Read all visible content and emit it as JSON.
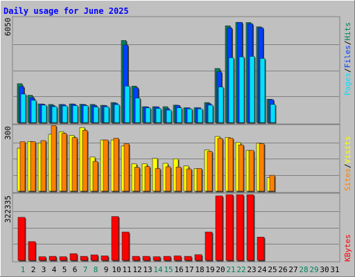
{
  "title": "Daily usage for June 2025",
  "colors": {
    "frame_bg": "#c0c0c0",
    "plot_bg": "#c0c0c0",
    "title": "#0000ff",
    "hits": "#00805c",
    "files": "#0040ff",
    "pages": "#00e0ff",
    "visits": "#ffff00",
    "sites": "#ff8000",
    "kbytes": "#ff0000",
    "weekend_label": "#00805c",
    "weekday_label": "#000000"
  },
  "legend": {
    "top": [
      {
        "text": "Pages",
        "color": "#00e0ff"
      },
      {
        "text": "/",
        "color": "#000000"
      },
      {
        "text": "Files",
        "color": "#0040ff"
      },
      {
        "text": "/",
        "color": "#000000"
      },
      {
        "text": "Hits",
        "color": "#00805c"
      }
    ],
    "middle": [
      {
        "text": "Sites",
        "color": "#ff8000"
      },
      {
        "text": "/",
        "color": "#000000"
      },
      {
        "text": "Visits",
        "color": "#ffff00"
      }
    ],
    "bottom": [
      {
        "text": "KBytes",
        "color": "#ff0000"
      }
    ]
  },
  "chart_data": [
    {
      "type": "bar",
      "panel": "hits-files-pages",
      "ymax_label": "6050",
      "ylim": [
        0,
        6050
      ],
      "categories": [
        "1",
        "2",
        "3",
        "4",
        "5",
        "6",
        "7",
        "8",
        "9",
        "10",
        "11",
        "12",
        "13",
        "14",
        "15",
        "16",
        "17",
        "18",
        "19",
        "20",
        "21",
        "22",
        "23",
        "24",
        "25",
        "26",
        "27",
        "28",
        "29",
        "30",
        "31"
      ],
      "series": [
        {
          "name": "Hits",
          "color": "#00805c",
          "values": [
            2250,
            1580,
            1080,
            1050,
            1050,
            1080,
            1060,
            1050,
            1000,
            1160,
            4750,
            2110,
            920,
            920,
            920,
            1010,
            860,
            860,
            1160,
            3130,
            5600,
            5800,
            5790,
            5540,
            1350,
            0,
            0,
            0,
            0,
            0,
            0
          ]
        },
        {
          "name": "Files",
          "color": "#0040ff",
          "values": [
            2080,
            1440,
            1070,
            980,
            1040,
            1060,
            1040,
            1000,
            980,
            1120,
            4490,
            2010,
            910,
            910,
            800,
            990,
            850,
            860,
            1100,
            2940,
            5480,
            5800,
            5720,
            5490,
            1330,
            0,
            0,
            0,
            0,
            0,
            0
          ]
        },
        {
          "name": "Pages",
          "color": "#00e0ff",
          "values": [
            1650,
            1290,
            1010,
            920,
            960,
            980,
            980,
            900,
            910,
            1040,
            2110,
            1420,
            850,
            820,
            720,
            860,
            790,
            790,
            1010,
            2060,
            3750,
            3800,
            3830,
            3710,
            1050,
            0,
            0,
            0,
            0,
            0,
            0
          ]
        }
      ]
    },
    {
      "type": "bar",
      "panel": "visits-sites",
      "ymax_label": "300",
      "ylim": [
        0,
        300
      ],
      "categories": [
        "1",
        "2",
        "3",
        "4",
        "5",
        "6",
        "7",
        "8",
        "9",
        "10",
        "11",
        "12",
        "13",
        "14",
        "15",
        "16",
        "17",
        "18",
        "19",
        "20",
        "21",
        "22",
        "23",
        "24",
        "25",
        "26",
        "27",
        "28",
        "29",
        "30",
        "31"
      ],
      "series": [
        {
          "name": "Visits",
          "color": "#ffff00",
          "values": [
            198,
            229,
            222,
            262,
            274,
            257,
            293,
            157,
            236,
            236,
            208,
            126,
            126,
            151,
            128,
            149,
            116,
            104,
            190,
            252,
            248,
            224,
            188,
            221,
            62,
            0,
            0,
            0,
            0,
            0,
            0
          ]
        },
        {
          "name": "Sites",
          "color": "#ff8000",
          "values": [
            228,
            228,
            233,
            302,
            266,
            247,
            280,
            137,
            236,
            244,
            219,
            110,
            113,
            104,
            112,
            111,
            102,
            104,
            183,
            243,
            244,
            213,
            188,
            219,
            73,
            0,
            0,
            0,
            0,
            0,
            0
          ]
        }
      ]
    },
    {
      "type": "bar",
      "panel": "kbytes",
      "ymax_label": "322335",
      "ylim": [
        0,
        322335
      ],
      "categories": [
        "1",
        "2",
        "3",
        "4",
        "5",
        "6",
        "7",
        "8",
        "9",
        "10",
        "11",
        "12",
        "13",
        "14",
        "15",
        "16",
        "17",
        "18",
        "19",
        "20",
        "21",
        "22",
        "23",
        "24",
        "25",
        "26",
        "27",
        "28",
        "29",
        "30",
        "31"
      ],
      "series": [
        {
          "name": "KBytes",
          "color": "#ff0000",
          "values": [
            211000,
            92000,
            18000,
            20000,
            18000,
            33000,
            20000,
            27000,
            22000,
            215000,
            139000,
            20000,
            20000,
            18000,
            20000,
            22000,
            20000,
            28000,
            139000,
            316000,
            322000,
            322000,
            322000,
            114000,
            0,
            0,
            0,
            0,
            0,
            0,
            0
          ]
        }
      ]
    }
  ],
  "day_labels": [
    {
      "text": "1",
      "color": "#00805c"
    },
    {
      "text": "2",
      "color": "#000000"
    },
    {
      "text": "3",
      "color": "#000000"
    },
    {
      "text": "4",
      "color": "#000000"
    },
    {
      "text": "5",
      "color": "#000000"
    },
    {
      "text": "6",
      "color": "#000000"
    },
    {
      "text": "7",
      "color": "#00805c"
    },
    {
      "text": "8",
      "color": "#00805c"
    },
    {
      "text": "9",
      "color": "#000000"
    },
    {
      "text": "10",
      "color": "#000000"
    },
    {
      "text": "11",
      "color": "#000000"
    },
    {
      "text": "12",
      "color": "#000000"
    },
    {
      "text": "13",
      "color": "#000000"
    },
    {
      "text": "14",
      "color": "#00805c"
    },
    {
      "text": "15",
      "color": "#00805c"
    },
    {
      "text": "16",
      "color": "#000000"
    },
    {
      "text": "17",
      "color": "#000000"
    },
    {
      "text": "18",
      "color": "#000000"
    },
    {
      "text": "19",
      "color": "#000000"
    },
    {
      "text": "20",
      "color": "#000000"
    },
    {
      "text": "21",
      "color": "#00805c"
    },
    {
      "text": "22",
      "color": "#00805c"
    },
    {
      "text": "23",
      "color": "#000000"
    },
    {
      "text": "24",
      "color": "#000000"
    },
    {
      "text": "25",
      "color": "#000000"
    },
    {
      "text": "26",
      "color": "#000000"
    },
    {
      "text": "27",
      "color": "#000000"
    },
    {
      "text": "28",
      "color": "#00805c"
    },
    {
      "text": "29",
      "color": "#00805c"
    },
    {
      "text": "30",
      "color": "#000000"
    },
    {
      "text": "31",
      "color": "#000000"
    }
  ]
}
